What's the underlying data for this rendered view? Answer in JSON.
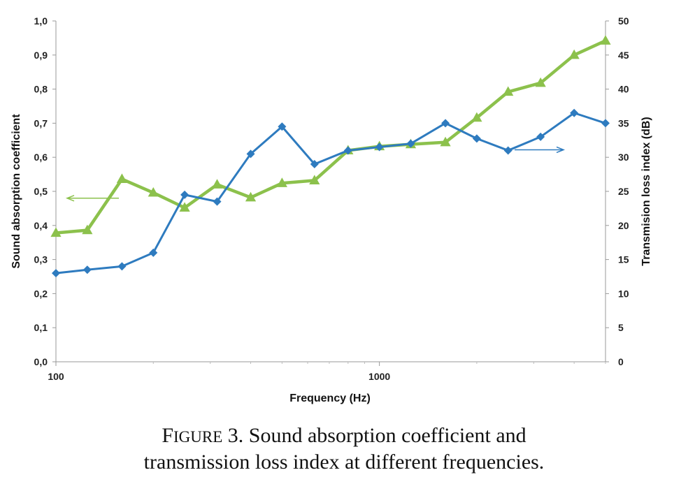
{
  "chart_data": {
    "type": "line",
    "x_scale": "log",
    "xlabel": "Frequency (Hz)",
    "ylabel_left": "Sound absorption coefficient",
    "ylabel_right": "Transmision loss index (dB)",
    "xlim": [
      100,
      5000
    ],
    "ylim_left": [
      0,
      1
    ],
    "ylim_right": [
      0,
      50
    ],
    "x_ticks": [
      "100",
      "1000"
    ],
    "y_ticks_left": [
      "0,0",
      "0,1",
      "0,2",
      "0,3",
      "0,4",
      "0,5",
      "0,6",
      "0,7",
      "0,8",
      "0,9",
      "1,0"
    ],
    "y_ticks_right": [
      "0",
      "5",
      "10",
      "15",
      "20",
      "25",
      "30",
      "35",
      "40",
      "45",
      "50"
    ],
    "x": [
      100,
      125,
      160,
      200,
      250,
      315,
      400,
      500,
      630,
      800,
      1000,
      1250,
      1600,
      2000,
      2500,
      3150,
      4000,
      5000
    ],
    "series": [
      {
        "axis": "left",
        "color": "#2e7bbf",
        "marker": "diamond",
        "values": [
          0.26,
          0.27,
          0.28,
          0.32,
          0.49,
          0.47,
          0.61,
          0.69,
          0.58,
          0.62,
          0.63,
          0.64,
          0.7,
          0.655,
          0.62,
          0.66,
          0.73,
          0.7
        ]
      },
      {
        "axis": "right",
        "color": "#8cc14c",
        "marker": "triangle",
        "values": [
          18.9,
          19.3,
          26.8,
          24.8,
          22.6,
          26.0,
          24.1,
          26.2,
          26.6,
          31.0,
          31.6,
          31.9,
          32.2,
          35.8,
          39.6,
          40.9,
          45.0,
          47.1
        ]
      }
    ],
    "annotations": [
      {
        "type": "arrow",
        "direction": "left",
        "points_to": "left-axis",
        "color": "#8cc14c"
      },
      {
        "type": "arrow",
        "direction": "right",
        "points_to": "right-axis",
        "color": "#2e7bbf"
      }
    ]
  },
  "caption": {
    "figure_label": "Figure",
    "figure_number": "3.",
    "text_line1": "Sound absorption coefficient and",
    "text_line2": "transmission loss index at different frequencies."
  }
}
